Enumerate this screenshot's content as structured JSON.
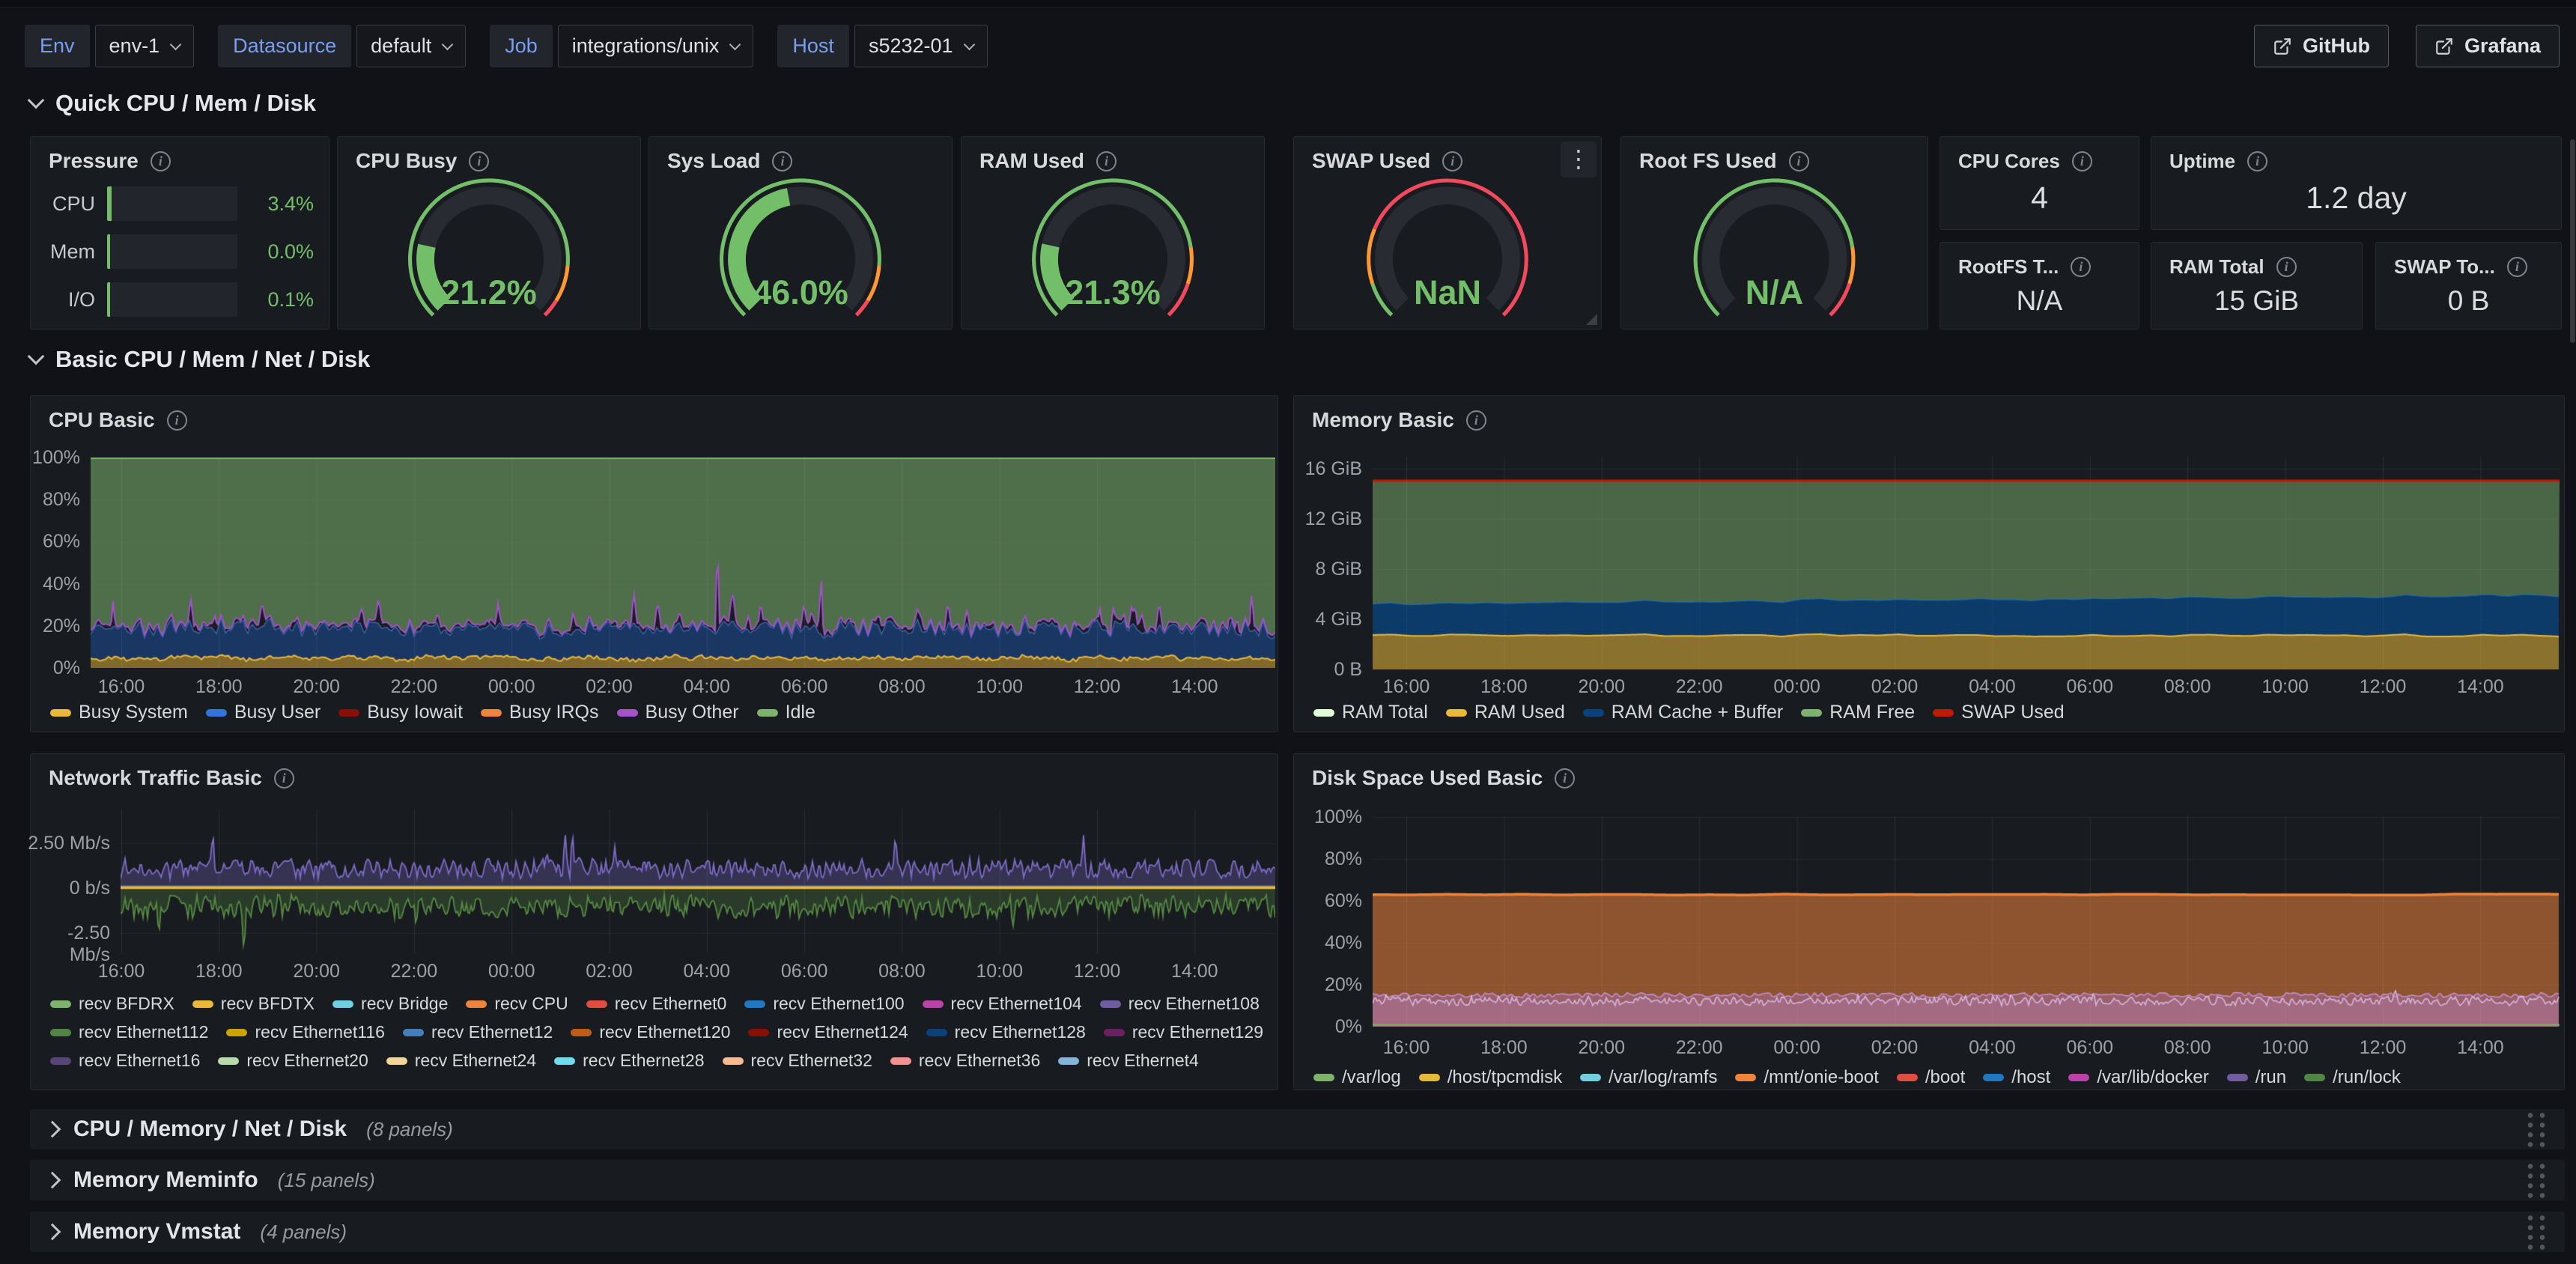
{
  "colors": {
    "ok_green": "#73BF69",
    "warn_orange": "#FF9830",
    "crit_red": "#F2495C"
  },
  "topbar": {
    "variables": [
      {
        "label": "Env",
        "value": "env-1"
      },
      {
        "label": "Datasource",
        "value": "default"
      },
      {
        "label": "Job",
        "value": "integrations/unix"
      },
      {
        "label": "Host",
        "value": "s5232-01"
      }
    ],
    "links": [
      {
        "label": "GitHub"
      },
      {
        "label": "Grafana"
      }
    ]
  },
  "rows": {
    "quick": {
      "title": "Quick CPU / Mem / Disk"
    },
    "basic": {
      "title": "Basic CPU / Mem / Net / Disk"
    },
    "collapsed_rows": [
      {
        "title": "CPU / Memory / Net / Disk",
        "panel_count": "(8 panels)"
      },
      {
        "title": "Memory Meminfo",
        "panel_count": "(15 panels)"
      },
      {
        "title": "Memory Vmstat",
        "panel_count": "(4 panels)"
      }
    ]
  },
  "pressure": {
    "title": "Pressure",
    "rows": [
      {
        "label": "CPU",
        "value": "3.4%",
        "pct": 3.4
      },
      {
        "label": "Mem",
        "value": "0.0%",
        "pct": 0.0
      },
      {
        "label": "I/O",
        "value": "0.1%",
        "pct": 0.1
      }
    ]
  },
  "gauges": [
    {
      "id": "cpu-busy",
      "title": "CPU Busy",
      "value": "21.2%",
      "pct": 21.2,
      "thresholds": [
        {
          "color": "#73BF69",
          "to": 85
        },
        {
          "color": "#FF9830",
          "to": 95
        },
        {
          "color": "#F2495C",
          "to": 100
        }
      ]
    },
    {
      "id": "sys-load",
      "title": "Sys Load",
      "value": "46.0%",
      "pct": 46.0,
      "thresholds": [
        {
          "color": "#73BF69",
          "to": 85
        },
        {
          "color": "#FF9830",
          "to": 95
        },
        {
          "color": "#F2495C",
          "to": 100
        }
      ]
    },
    {
      "id": "ram-used",
      "title": "RAM Used",
      "value": "21.3%",
      "pct": 21.3,
      "thresholds": [
        {
          "color": "#73BF69",
          "to": 80
        },
        {
          "color": "#FF9830",
          "to": 90
        },
        {
          "color": "#F2495C",
          "to": 100
        }
      ]
    },
    {
      "id": "swap-used",
      "title": "SWAP Used",
      "value": "NaN",
      "pct": 0,
      "thresholds": [
        {
          "color": "#73BF69",
          "to": 10
        },
        {
          "color": "#FF9830",
          "to": 25
        },
        {
          "color": "#F2495C",
          "to": 100
        }
      ]
    },
    {
      "id": "rootfs-used",
      "title": "Root FS Used",
      "value": "N/A",
      "pct": 0,
      "thresholds": [
        {
          "color": "#73BF69",
          "to": 80
        },
        {
          "color": "#FF9830",
          "to": 90
        },
        {
          "color": "#F2495C",
          "to": 100
        }
      ]
    }
  ],
  "stats": [
    {
      "title": "CPU Cores",
      "value": "4"
    },
    {
      "title": "Uptime",
      "value": "1.2 day"
    },
    {
      "title": "RootFS T...",
      "value": "N/A"
    },
    {
      "title": "RAM Total",
      "value": "15 GiB"
    },
    {
      "title": "SWAP To...",
      "value": "0 B"
    }
  ],
  "chart_data": [
    {
      "id": "cpu-basic",
      "type": "area-stacked",
      "title": "CPU Basic",
      "ylim": [
        0,
        100
      ],
      "y_ticks": [
        "100%",
        "80%",
        "60%",
        "40%",
        "20%",
        "0%"
      ],
      "x_ticks": [
        "16:00",
        "18:00",
        "20:00",
        "22:00",
        "00:00",
        "02:00",
        "04:00",
        "06:00",
        "08:00",
        "10:00",
        "12:00",
        "14:00"
      ],
      "legend_position": "bottom",
      "series": [
        {
          "name": "Busy System",
          "color": "#EAB839",
          "approx_mean_pct": 4.3
        },
        {
          "name": "Busy User",
          "color": "#3274D9",
          "approx_mean_pct": 13.5
        },
        {
          "name": "Busy Iowait",
          "color": "#890F02",
          "approx_mean_pct": 0.3
        },
        {
          "name": "Busy IRQs",
          "color": "#EF843C",
          "approx_mean_pct": 0.2
        },
        {
          "name": "Busy Other",
          "color": "#A352CC",
          "approx_mean_pct": 1.8,
          "spikes_to_pct": 55
        },
        {
          "name": "Idle",
          "color": "#7EB26D",
          "approx_mean_pct": 80
        }
      ]
    },
    {
      "id": "memory-basic",
      "type": "area-stacked",
      "title": "Memory Basic",
      "ylim": [
        0,
        16
      ],
      "y_ticks": [
        "16 GiB",
        "12 GiB",
        "8 GiB",
        "4 GiB",
        "0 B"
      ],
      "x_ticks": [
        "16:00",
        "18:00",
        "20:00",
        "22:00",
        "00:00",
        "02:00",
        "04:00",
        "06:00",
        "08:00",
        "10:00",
        "12:00",
        "14:00"
      ],
      "legend_position": "bottom",
      "series": [
        {
          "name": "RAM Total",
          "color": "#E0F9D7",
          "approx_gib": 15.0
        },
        {
          "name": "RAM Used",
          "color": "#EAB839",
          "approx_gib": 2.7
        },
        {
          "name": "RAM Cache + Buffer",
          "color": "#0A437C",
          "approx_band_top_gib_range": [
            5.2,
            5.9
          ]
        },
        {
          "name": "RAM Free",
          "color": "#7EB26D",
          "approx_gib_range": [
            9.1,
            9.8
          ]
        },
        {
          "name": "SWAP Used",
          "color": "#BF1B00",
          "approx_gib": 0
        }
      ]
    },
    {
      "id": "network-traffic-basic",
      "type": "line",
      "title": "Network Traffic Basic",
      "ylim": [
        -3.5,
        4.3
      ],
      "y_ticks": [
        "2.50 Mb/s",
        "0 b/s",
        "-2.50 Mb/s"
      ],
      "x_ticks": [
        "16:00",
        "18:00",
        "20:00",
        "22:00",
        "00:00",
        "02:00",
        "04:00",
        "06:00",
        "08:00",
        "10:00",
        "12:00",
        "14:00"
      ],
      "legend_position": "bottom",
      "visual_estimates": {
        "upper_band_mbps": [
          0.5,
          1.65
        ],
        "upper_spikes_mbps": 2.9,
        "upper_color": "#705DA0",
        "lower_band_mbps": [
          -1.7,
          -0.35
        ],
        "lower_spikes_mbps": -3.2,
        "lower_color": "#508642",
        "zero_line_colors": [
          "#EAB839",
          "#447EBC"
        ]
      },
      "series": [
        {
          "name": "recv BFDRX",
          "color": "#7EB26D"
        },
        {
          "name": "recv BFDTX",
          "color": "#EAB839"
        },
        {
          "name": "recv Bridge",
          "color": "#6ED0E0"
        },
        {
          "name": "recv CPU",
          "color": "#EF843C"
        },
        {
          "name": "recv Ethernet0",
          "color": "#E24D42"
        },
        {
          "name": "recv Ethernet100",
          "color": "#1F78C1"
        },
        {
          "name": "recv Ethernet104",
          "color": "#BA43A9"
        },
        {
          "name": "recv Ethernet108",
          "color": "#705DA0"
        },
        {
          "name": "recv Ethernet112",
          "color": "#508642"
        },
        {
          "name": "recv Ethernet116",
          "color": "#CCA300"
        },
        {
          "name": "recv Ethernet12",
          "color": "#447EBC"
        },
        {
          "name": "recv Ethernet120",
          "color": "#C15C17"
        },
        {
          "name": "recv Ethernet124",
          "color": "#890F02"
        },
        {
          "name": "recv Ethernet128",
          "color": "#0A437C"
        },
        {
          "name": "recv Ethernet129",
          "color": "#6D1F62"
        },
        {
          "name": "recv Ethernet16",
          "color": "#584477"
        },
        {
          "name": "recv Ethernet20",
          "color": "#B7DBAB"
        },
        {
          "name": "recv Ethernet24",
          "color": "#F4D598"
        },
        {
          "name": "recv Ethernet28",
          "color": "#70DBED"
        },
        {
          "name": "recv Ethernet32",
          "color": "#F9BA8F"
        },
        {
          "name": "recv Ethernet36",
          "color": "#F29191"
        },
        {
          "name": "recv Ethernet4",
          "color": "#82B5D8"
        }
      ]
    },
    {
      "id": "disk-space-used-basic",
      "type": "area",
      "title": "Disk Space Used Basic",
      "ylim": [
        0,
        100
      ],
      "y_ticks": [
        "100%",
        "80%",
        "60%",
        "40%",
        "20%",
        "0%"
      ],
      "x_ticks": [
        "16:00",
        "18:00",
        "20:00",
        "22:00",
        "00:00",
        "02:00",
        "04:00",
        "06:00",
        "08:00",
        "10:00",
        "12:00",
        "14:00"
      ],
      "legend_position": "bottom",
      "visual_estimates": {
        "flat_area_top_pct": 63,
        "flat_area_color": "#EF843C",
        "lavender_band_top_pct": 15.6,
        "inner_line_range_pct": [
          10,
          14
        ],
        "bottom_line_pct": 0.8
      },
      "series": [
        {
          "name": "/var/log",
          "color": "#7EB26D"
        },
        {
          "name": "/host/tpcmdisk",
          "color": "#EAB839"
        },
        {
          "name": "/var/log/ramfs",
          "color": "#6ED0E0"
        },
        {
          "name": "/mnt/onie-boot",
          "color": "#EF843C"
        },
        {
          "name": "/boot",
          "color": "#E24D42"
        },
        {
          "name": "/host",
          "color": "#1F78C1"
        },
        {
          "name": "/var/lib/docker",
          "color": "#BA43A9"
        },
        {
          "name": "/run",
          "color": "#705DA0"
        },
        {
          "name": "/run/lock",
          "color": "#508642"
        }
      ]
    }
  ]
}
